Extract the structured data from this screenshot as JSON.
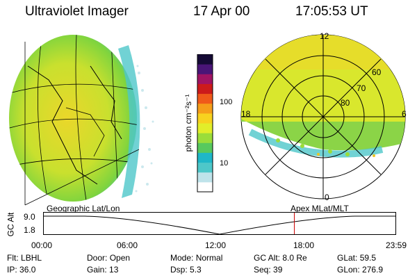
{
  "header": {
    "title": "Ultraviolet Imager",
    "date": "17 Apr 00",
    "time": "17:05:53 UT"
  },
  "colorbar": {
    "label": "photon cm⁻²s⁻¹",
    "ticks": [
      "100",
      "10"
    ],
    "colors": [
      "#ffffff",
      "#bfe3ea",
      "#4ec7c9",
      "#1fb7c8",
      "#57c95e",
      "#9bdd3a",
      "#e2ee2a",
      "#f7d21f",
      "#f59e1a",
      "#ef5a1a",
      "#cc1b1b",
      "#a01463",
      "#4a1577",
      "#150a35"
    ]
  },
  "polar": {
    "mlt_labels": [
      "12",
      "18",
      "6",
      "0"
    ],
    "lat_labels": [
      "60",
      "70",
      "80"
    ]
  },
  "timeline": {
    "y_label": "GC Alt",
    "y_ticks": [
      "9.0",
      "1.8"
    ],
    "left_caption": "Geographic Lat/Lon",
    "right_caption": "Apex MLat/MLT",
    "x_ticks": [
      "00:00",
      "06:00",
      "12:00",
      "18:00",
      "23:59"
    ],
    "marker_fraction": 0.7124
  },
  "footer": {
    "row1": [
      {
        "label": "Flt:",
        "value": "LBHL"
      },
      {
        "label": "Door:",
        "value": "Open"
      },
      {
        "label": "Mode:",
        "value": "Normal"
      },
      {
        "label": "GC Alt:",
        "value": "8.0 Re"
      },
      {
        "label": "GLat:",
        "value": "59.5"
      }
    ],
    "row2": [
      {
        "label": "IP:",
        "value": "36.0"
      },
      {
        "label": "Gain:",
        "value": "13"
      },
      {
        "label": "Dsp:",
        "value": "5.3"
      },
      {
        "label": "Seq:",
        "value": "39"
      },
      {
        "label": "GLon:",
        "value": "276.9"
      }
    ]
  }
}
